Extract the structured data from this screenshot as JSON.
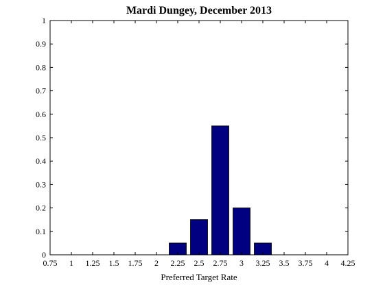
{
  "chart_data": {
    "type": "bar",
    "title": "Mardi Dungey, December 2013",
    "xlabel": "Preferred Target Rate",
    "ylabel": "",
    "xlim": [
      0.75,
      4.25
    ],
    "ylim": [
      0,
      1
    ],
    "xticks": [
      "0.75",
      "1",
      "1.25",
      "1.5",
      "1.75",
      "2",
      "2.25",
      "2.5",
      "2.75",
      "3",
      "3.25",
      "3.5",
      "3.75",
      "4",
      "4.25"
    ],
    "yticks": [
      "0",
      "0.1",
      "0.2",
      "0.3",
      "0.4",
      "0.5",
      "0.6",
      "0.7",
      "0.8",
      "0.9",
      "1"
    ],
    "bar_width": 0.2,
    "x": [
      2.25,
      2.5,
      2.75,
      3.0,
      3.25
    ],
    "values": [
      0.05,
      0.15,
      0.55,
      0.2,
      0.05
    ],
    "bar_color": "#000080",
    "grid": false
  }
}
